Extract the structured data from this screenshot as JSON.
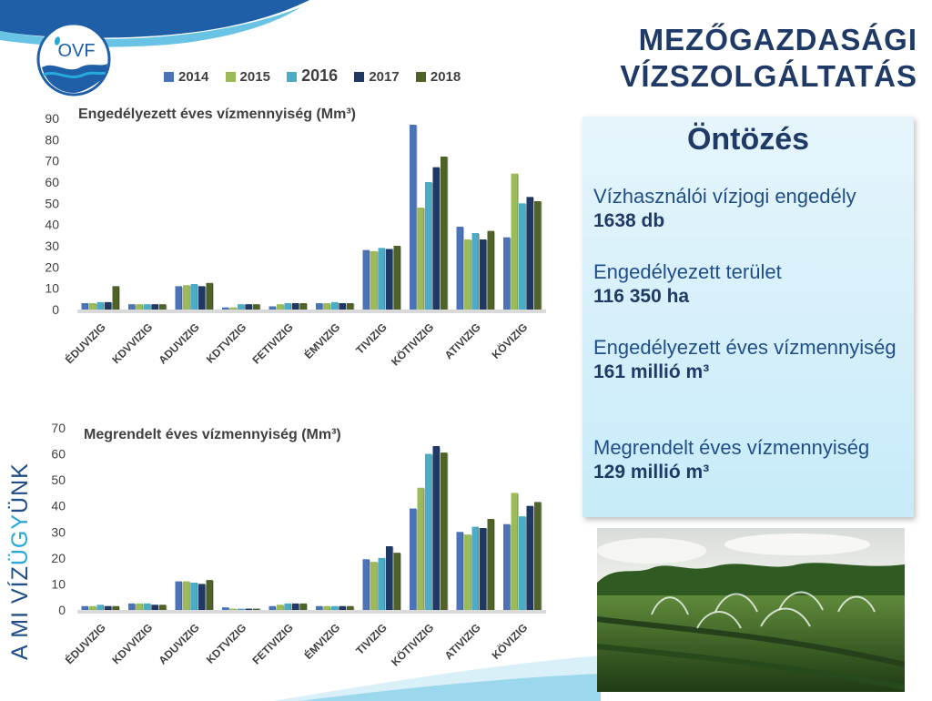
{
  "header": {
    "title_line1": "MEZŐGAZDASÁGI",
    "title_line2": "VÍZSZOLGÁLTATÁS",
    "logo_text": "OVF"
  },
  "side_text": {
    "part1": "A MI VÍZ",
    "part2": "ÜGY",
    "part3": "ÜNK"
  },
  "info": {
    "heading": "Öntözés",
    "items": [
      {
        "label": "Vízhasználói vízjogi engedély",
        "value": "1638 db"
      },
      {
        "label": "Engedélyezett terület",
        "value": "116 350 ha"
      },
      {
        "label": "Engedélyezett éves vízmennyiség",
        "value": "161 millió m³"
      },
      {
        "label": "Megrendelt éves vízmennyiség",
        "value": "129 millió m³"
      }
    ]
  },
  "colors": {
    "2014": "#4a73b8",
    "2015": "#9bbb59",
    "2016": "#4bacc6",
    "2017": "#1f3864",
    "2018": "#4f6228",
    "title": "#1f3a66",
    "box_bg": "#d3effa"
  },
  "chart_data": [
    {
      "type": "bar",
      "title": "Engedélyezett éves vízmennyiség (Mm³)",
      "categories": [
        "ÉDUVIZIG",
        "KDVVIZIG",
        "ADUVIZIG",
        "KDTVIZIG",
        "FETIVIZIG",
        "ÉMVIZIG",
        "TIVIZIG",
        "KÖTIVIZIG",
        "ATIVIZIG",
        "KÖVIZIG"
      ],
      "ylim": [
        0,
        90
      ],
      "yticks": [
        0,
        10,
        20,
        30,
        40,
        50,
        60,
        70,
        80,
        90
      ],
      "series": [
        {
          "name": "2014",
          "values": [
            3,
            2.5,
            11,
            1,
            1.5,
            3,
            28,
            87,
            39,
            34
          ]
        },
        {
          "name": "2015",
          "values": [
            3,
            2.5,
            11.5,
            1,
            2.5,
            3,
            27.5,
            48,
            33,
            64
          ]
        },
        {
          "name": "2016",
          "values": [
            3.5,
            2.5,
            12,
            2.5,
            3,
            3.5,
            29,
            60,
            36,
            50
          ]
        },
        {
          "name": "2017",
          "values": [
            3.5,
            2.5,
            11,
            2.5,
            3,
            3,
            28.5,
            67,
            33,
            53
          ]
        },
        {
          "name": "2018",
          "values": [
            11,
            2.5,
            12.5,
            2.5,
            3,
            3,
            30,
            72,
            37,
            51
          ]
        }
      ],
      "legend": "top"
    },
    {
      "type": "bar",
      "title": "Megrendelt éves vízmennyiség (Mm³)",
      "categories": [
        "ÉDUVIZIG",
        "KDVVIZIG",
        "ADUVIZIG",
        "KDTVIZIG",
        "FETIVIZIG",
        "ÉMVIZIG",
        "TIVIZIG",
        "KÖTIVIZIG",
        "ATIVIZIG",
        "KÖVIZIG"
      ],
      "ylim": [
        0,
        70
      ],
      "yticks": [
        0,
        10,
        20,
        30,
        40,
        50,
        60,
        70
      ],
      "series": [
        {
          "name": "2014",
          "values": [
            1.5,
            2.5,
            11,
            1,
            1.5,
            1.5,
            19.5,
            39,
            30,
            33
          ]
        },
        {
          "name": "2015",
          "values": [
            1.5,
            2.5,
            11,
            0.5,
            2,
            1.5,
            18.5,
            47,
            29,
            45
          ]
        },
        {
          "name": "2016",
          "values": [
            2,
            2.5,
            10.5,
            0.5,
            2.5,
            1.5,
            20,
            60,
            32,
            36
          ]
        },
        {
          "name": "2017",
          "values": [
            1.5,
            2,
            10,
            0.5,
            2.5,
            1.5,
            24.5,
            63,
            31.5,
            40
          ]
        },
        {
          "name": "2018",
          "values": [
            1.5,
            2,
            11.5,
            0.5,
            2.5,
            1.5,
            22,
            60.5,
            35,
            41.5
          ]
        }
      ]
    }
  ]
}
